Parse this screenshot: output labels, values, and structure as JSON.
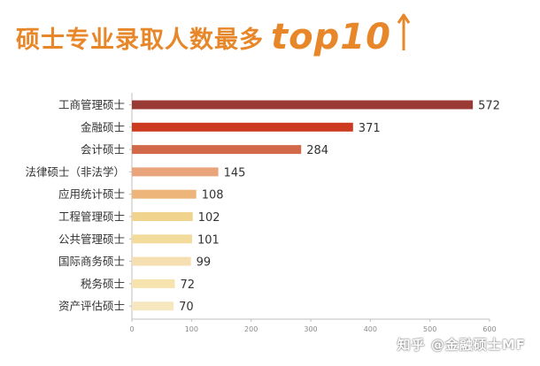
{
  "title": {
    "main": "硕士专业录取人数最多",
    "highlight": "top10",
    "accent_color": "#e8872a"
  },
  "watermark": "知乎 @金融硕士MF",
  "chart_data": {
    "type": "bar",
    "orientation": "horizontal",
    "categories": [
      "工商管理硕士",
      "金融硕士",
      "会计硕士",
      "法律硕士（非法学）",
      "应用统计硕士",
      "工程管理硕士",
      "公共管理硕士",
      "国际商务硕士",
      "税务硕士",
      "资产评估硕士"
    ],
    "values": [
      572,
      371,
      284,
      145,
      108,
      102,
      101,
      99,
      72,
      70
    ],
    "colors": [
      "#993a35",
      "#cc3b1f",
      "#d2694b",
      "#e9a47c",
      "#edb57a",
      "#f0d38c",
      "#f3dc9b",
      "#f5dfb0",
      "#f6e3ad",
      "#f7e7bf"
    ],
    "xlim": [
      0,
      600
    ],
    "xticks": [
      0,
      100,
      200,
      300,
      400,
      500,
      600
    ],
    "grid": false,
    "data_labels": true
  }
}
